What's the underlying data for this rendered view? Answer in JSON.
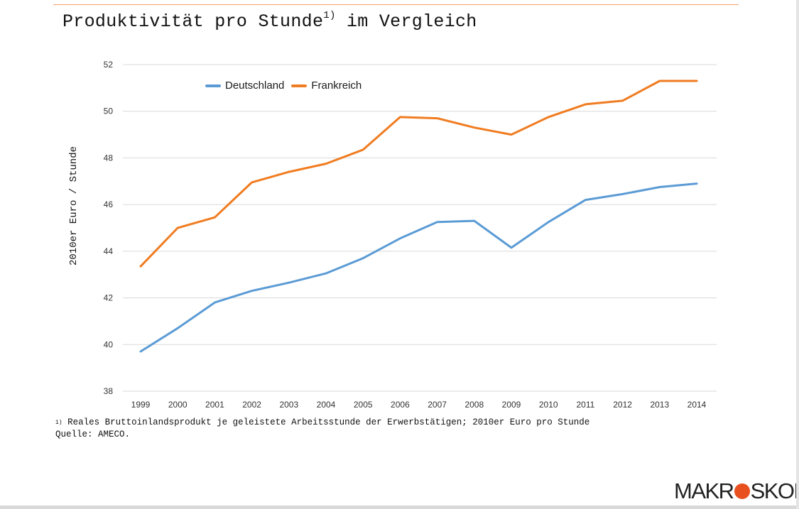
{
  "page": {
    "title_main": "Produktivität pro Stunde",
    "title_sup": "1)",
    "title_tail": " im Vergleich",
    "footnote_mark": "1)",
    "footnote_line1": " Reales Bruttoinlandsprodukt je geleistete Arbeitsstunde der Erwerbstätigen; 2010er Euro pro Stunde",
    "footnote_line2": "Quelle: AMECO.",
    "logo_left": "MAKR",
    "logo_right": "SKOP",
    "accent_color": "#e8501f"
  },
  "chart_data": {
    "type": "line",
    "title": "Produktivität pro Stunde1) im Vergleich",
    "xlabel": "",
    "ylabel": "2010er Euro / Stunde",
    "ylim": [
      38,
      52
    ],
    "yticks": [
      38,
      40,
      42,
      44,
      46,
      48,
      50,
      52
    ],
    "grid": "horizontal",
    "legend_position": "top-left",
    "categories": [
      "1999",
      "2000",
      "2001",
      "2002",
      "2003",
      "2004",
      "2005",
      "2006",
      "2007",
      "2008",
      "2009",
      "2010",
      "2011",
      "2012",
      "2013",
      "2014"
    ],
    "series": [
      {
        "name": "Deutschland",
        "color": "#5b9bd5",
        "values": [
          39.7,
          40.7,
          41.8,
          42.3,
          42.65,
          43.05,
          43.7,
          44.55,
          45.25,
          45.3,
          44.15,
          45.25,
          46.2,
          46.45,
          46.75,
          46.9
        ]
      },
      {
        "name": "Frankreich",
        "color": "#f07c21",
        "values": [
          43.35,
          45.0,
          45.45,
          46.95,
          47.4,
          47.75,
          48.35,
          49.75,
          49.7,
          49.3,
          49.0,
          49.75,
          50.3,
          50.45,
          51.3,
          51.3
        ]
      }
    ]
  }
}
